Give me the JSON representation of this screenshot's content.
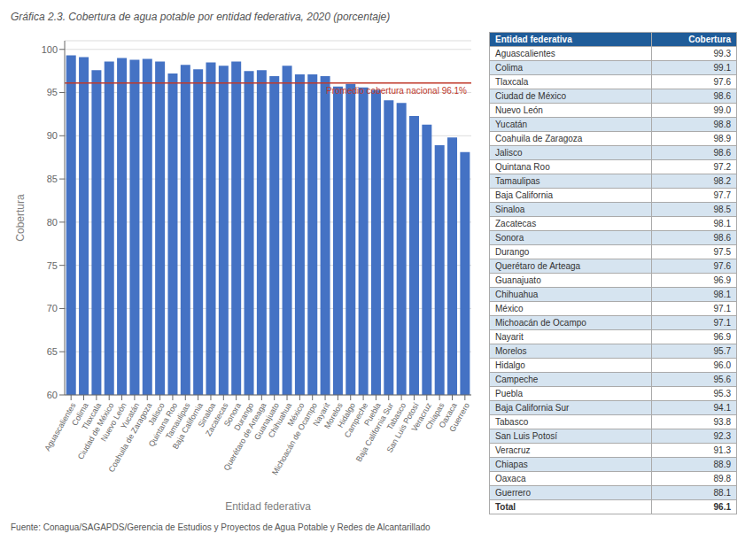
{
  "chart_data": {
    "type": "bar",
    "title": "Gráfica 2.3. Cobertura de agua potable por entidad federativa, 2020 (porcentaje)",
    "xlabel": "Entidad federativa",
    "ylabel": "Cobertura",
    "source": "Fuente: Conagua/SAGAPDS/Gerencia de Estudios y Proyectos de Agua Potable y Redes de Alcantarillado",
    "categories": [
      "Aguascalientes",
      "Colima",
      "Tlaxcala",
      "Ciudad de México",
      "Nuevo León",
      "Yucatán",
      "Coahuila de Zaragoza",
      "Jalisco",
      "Quintana Roo",
      "Tamaulipas",
      "Baja California",
      "Sinaloa",
      "Zacatecas",
      "Sonora",
      "Durango",
      "Querétaro de Arteaga",
      "Guanajuato",
      "Chihuahua",
      "México",
      "Michoacán de Ocampo",
      "Nayarit",
      "Morelos",
      "Hidalgo",
      "Campeche",
      "Puebla",
      "Baja California Sur",
      "Tabasco",
      "San Luis Potosí",
      "Veracruz",
      "Chiapas",
      "Oaxaca",
      "Guerrero"
    ],
    "values": [
      99.3,
      99.1,
      97.6,
      98.6,
      99.0,
      98.8,
      98.9,
      98.6,
      97.2,
      98.2,
      97.7,
      98.5,
      98.1,
      98.6,
      97.5,
      97.6,
      96.9,
      98.1,
      97.1,
      97.1,
      96.9,
      95.7,
      96.0,
      95.6,
      95.3,
      94.1,
      93.8,
      92.3,
      91.3,
      88.9,
      89.8,
      88.1
    ],
    "color": "#4472C4",
    "ylim": [
      60,
      101
    ],
    "yticks": [
      60,
      65,
      70,
      75,
      80,
      85,
      90,
      95,
      100
    ],
    "grid": true,
    "annotations": [
      {
        "type": "hline",
        "y": 96.1,
        "label": "Promedio cobertura nacional 96.1%",
        "color": "#C0392B"
      }
    ],
    "table": {
      "header": [
        "Entidad federativa",
        "Cobertura"
      ],
      "total_label": "Total",
      "total_value": 96.1
    }
  }
}
